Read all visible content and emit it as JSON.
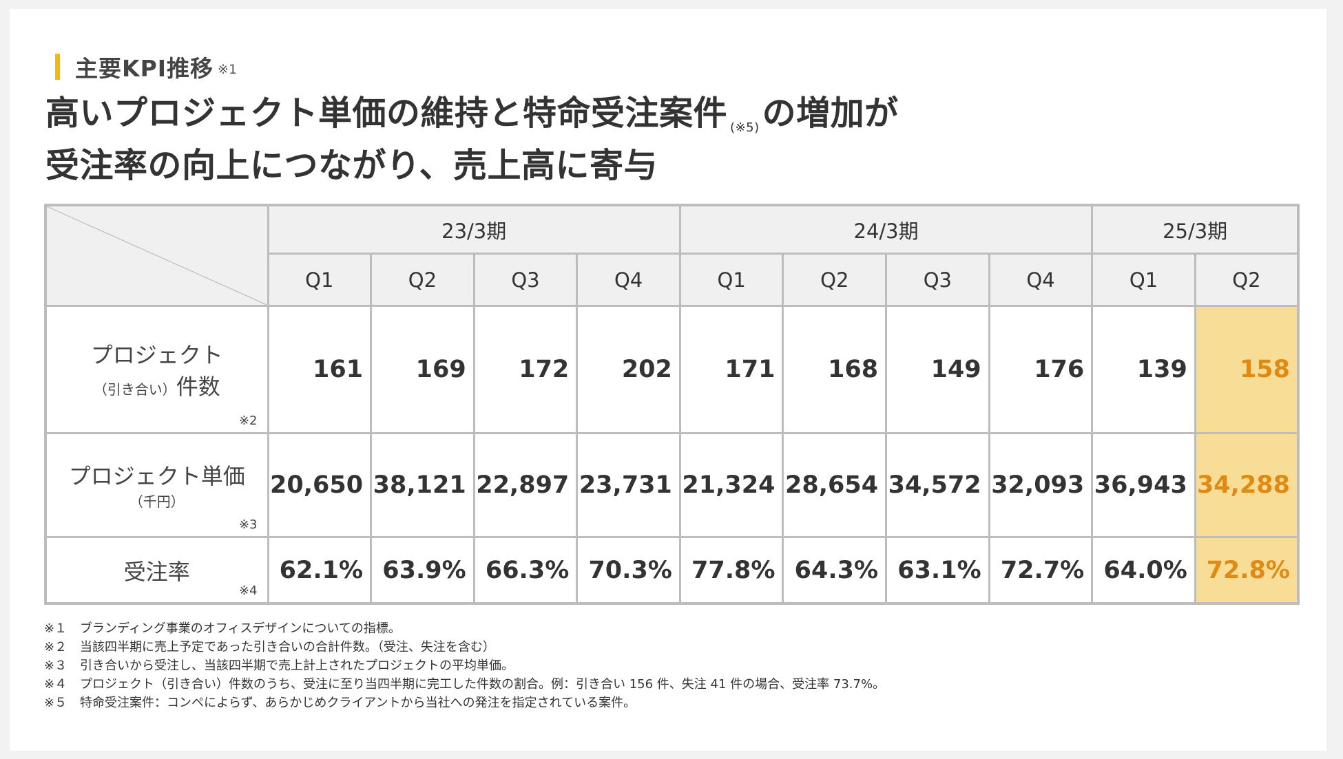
{
  "section": {
    "title": "主要KPI推移",
    "note": "※1"
  },
  "headline": {
    "line1_a": "高いプロジェクト単価の維持と特命受注案件",
    "line1_note": "(※5)",
    "line1_b": "の増加が",
    "line2": "受注率の向上につながり、売上高に寄与"
  },
  "table": {
    "periods": [
      "23/3期",
      "24/3期",
      "25/3期"
    ],
    "quarters": [
      "Q1",
      "Q2",
      "Q3",
      "Q4",
      "Q1",
      "Q2",
      "Q3",
      "Q4",
      "Q1",
      "Q2"
    ],
    "rows": [
      {
        "label": "プロジェクト",
        "sub": "（引き合い）",
        "label2": "件数",
        "mark": "※2",
        "values": [
          "161",
          "169",
          "172",
          "202",
          "171",
          "168",
          "149",
          "176",
          "139",
          "158"
        ]
      },
      {
        "label": "プロジェクト単価",
        "sub": "（千円）",
        "mark": "※3",
        "values": [
          "20,650",
          "38,121",
          "22,897",
          "23,731",
          "21,324",
          "28,654",
          "34,572",
          "32,093",
          "36,943",
          "34,288"
        ]
      },
      {
        "label": "受注率",
        "mark": "※4",
        "values": [
          "62.1%",
          "63.9%",
          "66.3%",
          "70.3%",
          "77.8%",
          "64.3%",
          "63.1%",
          "72.7%",
          "64.0%",
          "72.8%"
        ]
      }
    ],
    "highlight_color": "#f7dd96",
    "highlight_text_color": "#e08a14"
  },
  "footnotes": [
    {
      "mark": "※１",
      "text": "ブランディング事業のオフィスデザインについての指標。"
    },
    {
      "mark": "※２",
      "text": "当該四半期に売上予定であった引き合いの合計件数。（受注、失注を含む）"
    },
    {
      "mark": "※３",
      "text": "引き合いから受注し、当該四半期で売上計上されたプロジェクトの平均単価。"
    },
    {
      "mark": "※４",
      "text": "プロジェクト（引き合い）件数のうち、受注に至り当四半期に完工した件数の割合。例：引き合い 156 件、失注 41 件の場合、受注率 73.7%。"
    },
    {
      "mark": "※５",
      "text": "特命受注案件：コンペによらず、あらかじめクライアントから当社への発注を指定されている案件。"
    }
  ],
  "accent_color": "#f1b81a"
}
